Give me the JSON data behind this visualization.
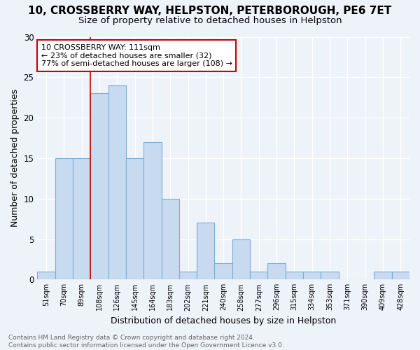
{
  "title": "10, CROSSBERRY WAY, HELPSTON, PETERBOROUGH, PE6 7ET",
  "subtitle": "Size of property relative to detached houses in Helpston",
  "xlabel": "Distribution of detached houses by size in Helpston",
  "ylabel": "Number of detached properties",
  "bar_color": "#c8daf0",
  "bar_edge_color": "#7aadd4",
  "categories": [
    "51sqm",
    "70sqm",
    "89sqm",
    "108sqm",
    "126sqm",
    "145sqm",
    "164sqm",
    "183sqm",
    "202sqm",
    "221sqm",
    "240sqm",
    "258sqm",
    "277sqm",
    "296sqm",
    "315sqm",
    "334sqm",
    "353sqm",
    "371sqm",
    "390sqm",
    "409sqm",
    "428sqm"
  ],
  "values": [
    1,
    15,
    15,
    23,
    24,
    15,
    17,
    10,
    1,
    7,
    2,
    5,
    1,
    2,
    1,
    1,
    1,
    0,
    0,
    1,
    1
  ],
  "annotation_text": "10 CROSSBERRY WAY: 111sqm\n← 23% of detached houses are smaller (32)\n77% of semi-detached houses are larger (108) →",
  "annotation_box_color": "#ffffff",
  "annotation_box_edge_color": "#cc0000",
  "vline_x_idx": 3,
  "ylim": [
    0,
    30
  ],
  "yticks": [
    0,
    5,
    10,
    15,
    20,
    25,
    30
  ],
  "footer": "Contains HM Land Registry data © Crown copyright and database right 2024.\nContains public sector information licensed under the Open Government Licence v3.0.",
  "bg_color": "#eef2f9",
  "grid_color": "#ffffff",
  "title_fontsize": 11,
  "subtitle_fontsize": 9.5,
  "xlabel_fontsize": 9,
  "ylabel_fontsize": 9,
  "annotation_fontsize": 8,
  "footer_fontsize": 6.5
}
